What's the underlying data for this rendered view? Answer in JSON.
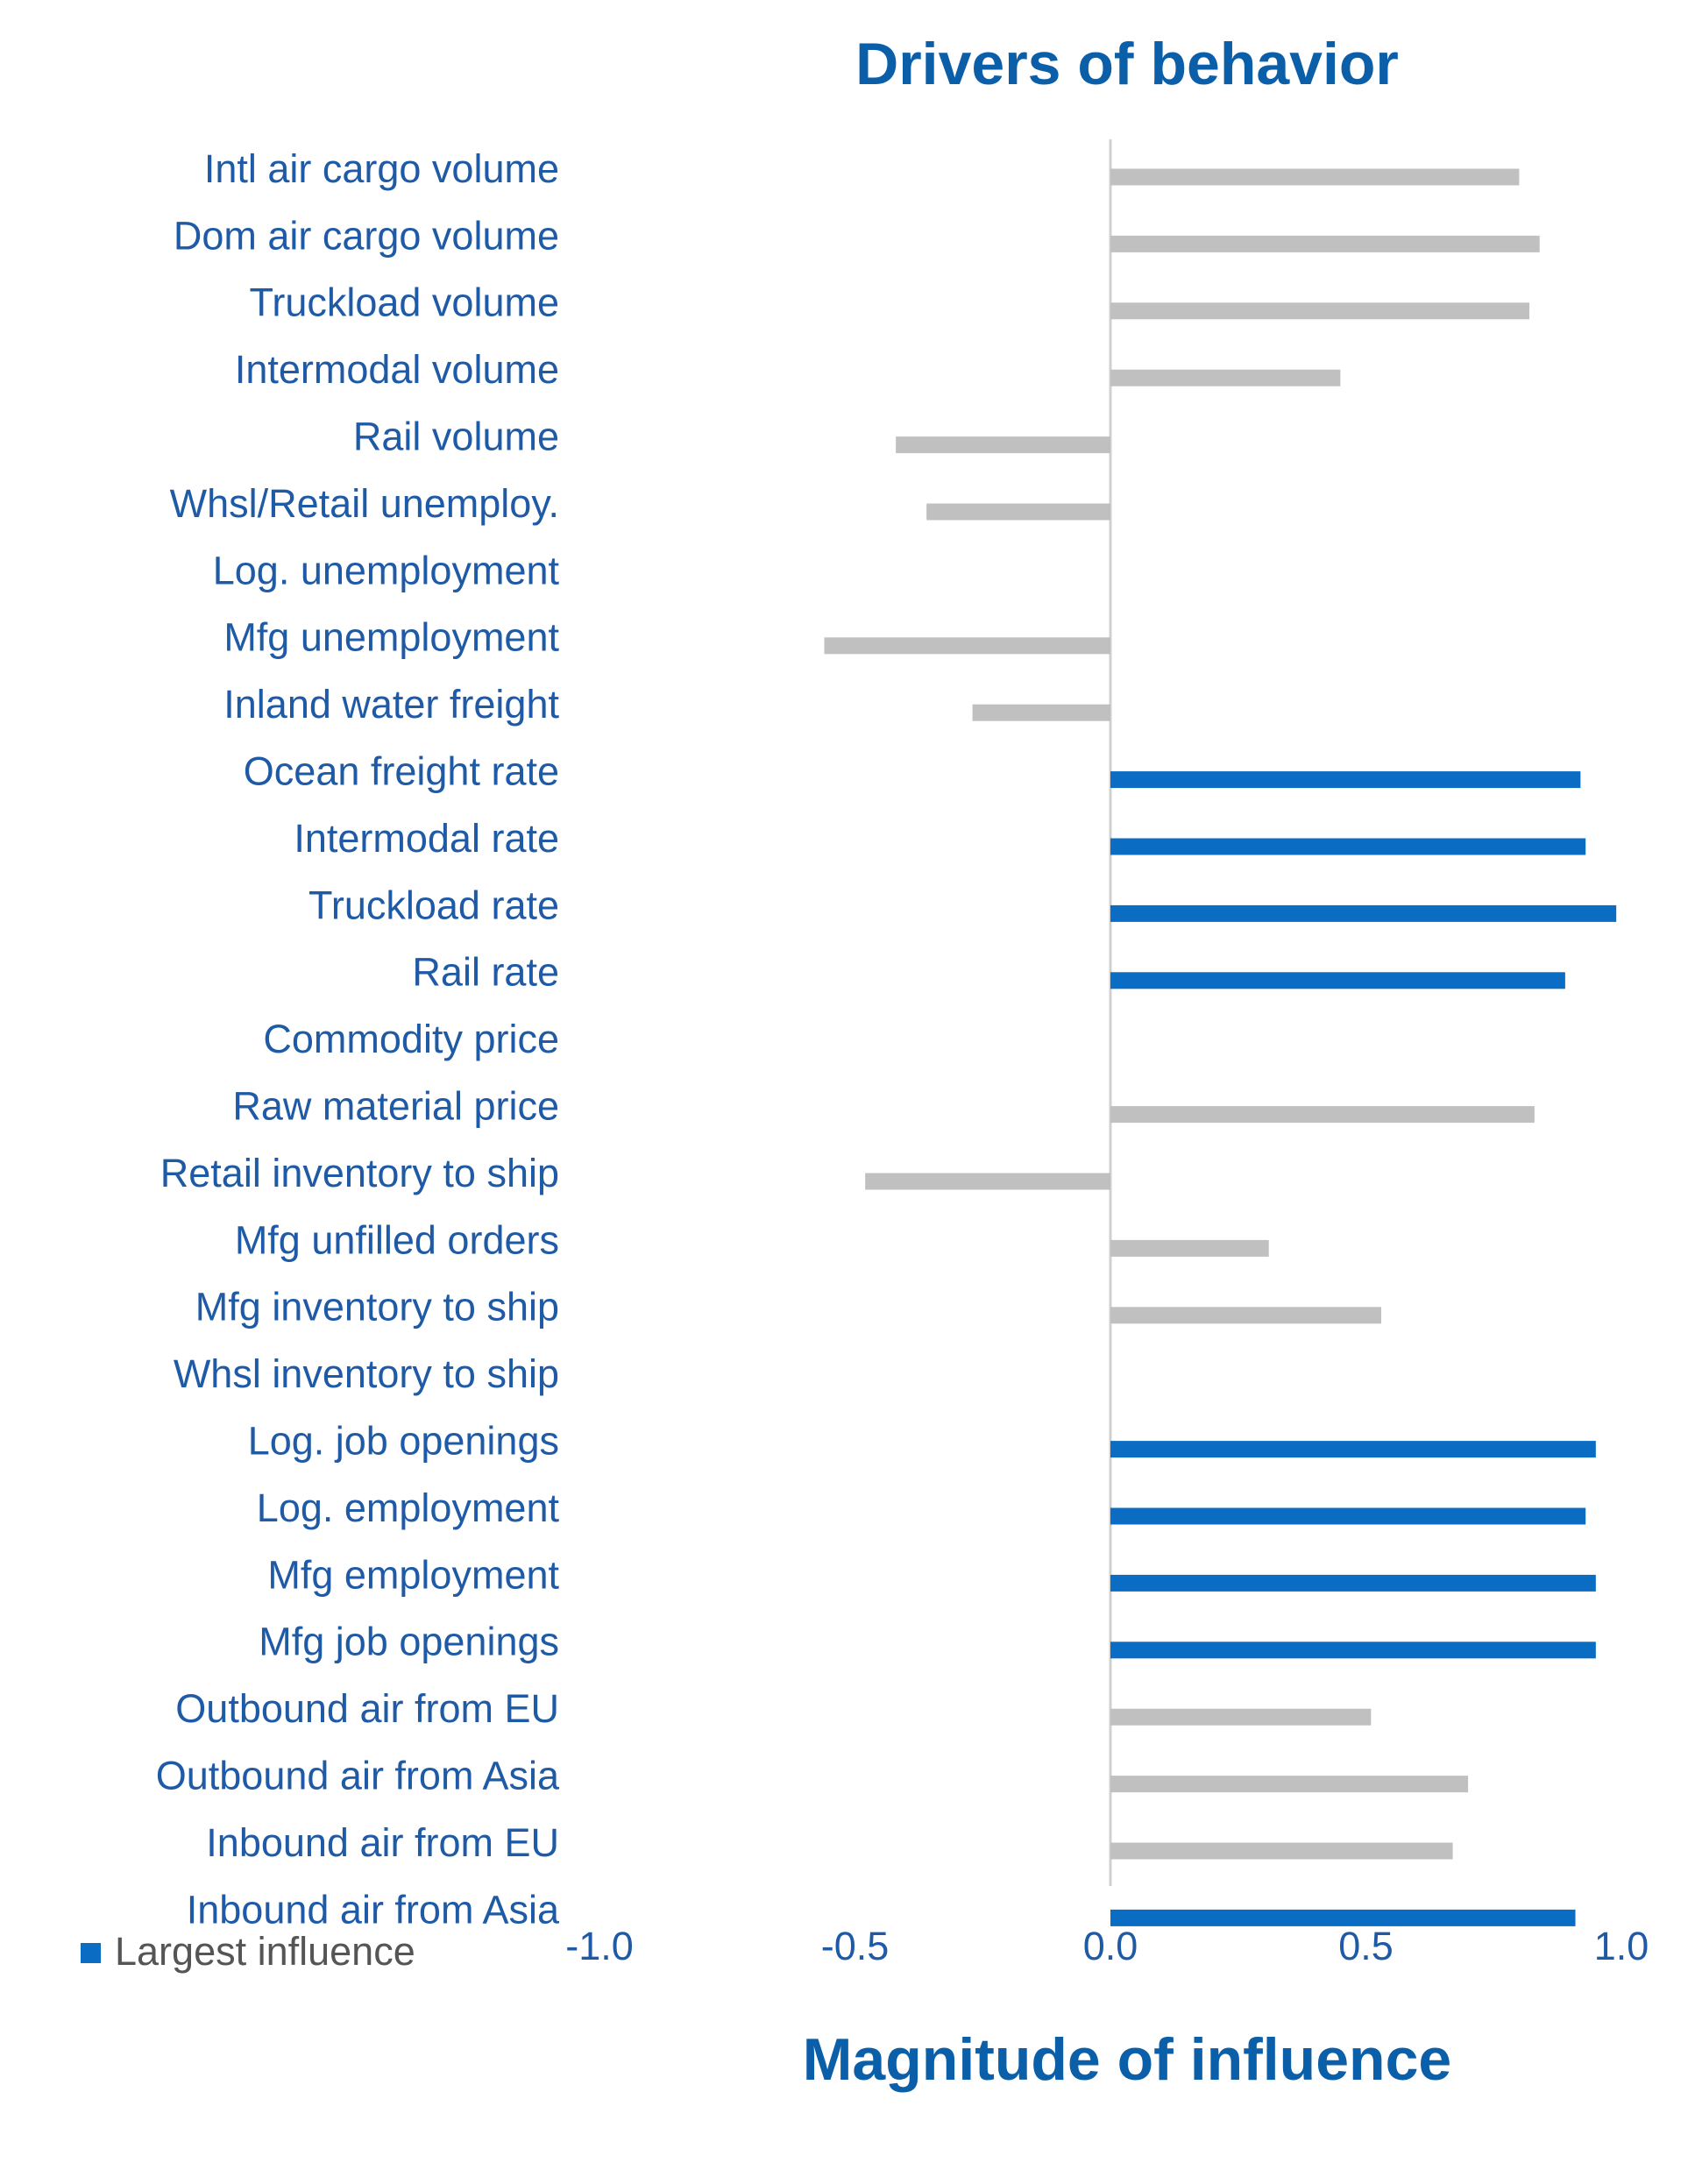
{
  "chart_data": {
    "type": "bar",
    "orientation": "horizontal",
    "title": "Drivers of behavior",
    "x_label": "Magnitude of influence",
    "categories": [
      "Intl air cargo volume",
      "Dom air cargo volume",
      "Truckload volume",
      "Intermodal volume",
      "Rail volume",
      "Whsl/Retail unemploy.",
      "Log. unemployment",
      "Mfg unemployment",
      "Inland water freight",
      "Ocean freight rate",
      "Intermodal rate",
      "Truckload rate",
      "Rail rate",
      "Commodity price",
      "Raw material price",
      "Retail inventory to ship",
      "Mfg unfilled orders",
      "Mfg inventory to ship",
      "Whsl inventory to ship",
      "Log. job openings",
      "Log. employment",
      "Mfg employment",
      "Mfg job openings",
      "Outbound air from EU",
      "Outbound air from Asia",
      "Inbound air from EU",
      "Inbound air from Asia"
    ],
    "values": [
      0.8,
      0.84,
      0.82,
      0.45,
      -0.42,
      -0.36,
      0,
      -0.56,
      -0.27,
      0.92,
      0.93,
      0.99,
      0.89,
      0,
      0.83,
      -0.48,
      0.31,
      0.53,
      0,
      0.95,
      0.93,
      0.95,
      0.95,
      0.51,
      0.7,
      0.67,
      0.91
    ],
    "colors": [
      "#c0c0c0",
      "#c0c0c0",
      "#c0c0c0",
      "#c0c0c0",
      "#c0c0c0",
      "#c0c0c0",
      "#c0c0c0",
      "#c0c0c0",
      "#c0c0c0",
      "#0b6cc4",
      "#0b6cc4",
      "#0b6cc4",
      "#0b6cc4",
      "#c0c0c0",
      "#c0c0c0",
      "#c0c0c0",
      "#c0c0c0",
      "#c0c0c0",
      "#c0c0c0",
      "#0b6cc4",
      "#0b6cc4",
      "#0b6cc4",
      "#0b6cc4",
      "#c0c0c0",
      "#c0c0c0",
      "#c0c0c0",
      "#0b6cc4"
    ],
    "legend": {
      "label": "Largest influence",
      "color": "#0b6cc4"
    },
    "xlim": [
      -1.0,
      1.0
    ],
    "xticks": [
      {
        "value": -1,
        "label": "-1.0"
      },
      {
        "value": -0.5,
        "label": "-0.5"
      },
      {
        "value": 0,
        "label": "0.0"
      },
      {
        "value": 0.5,
        "label": "0.5"
      },
      {
        "value": 1,
        "label": "1.0"
      }
    ]
  }
}
